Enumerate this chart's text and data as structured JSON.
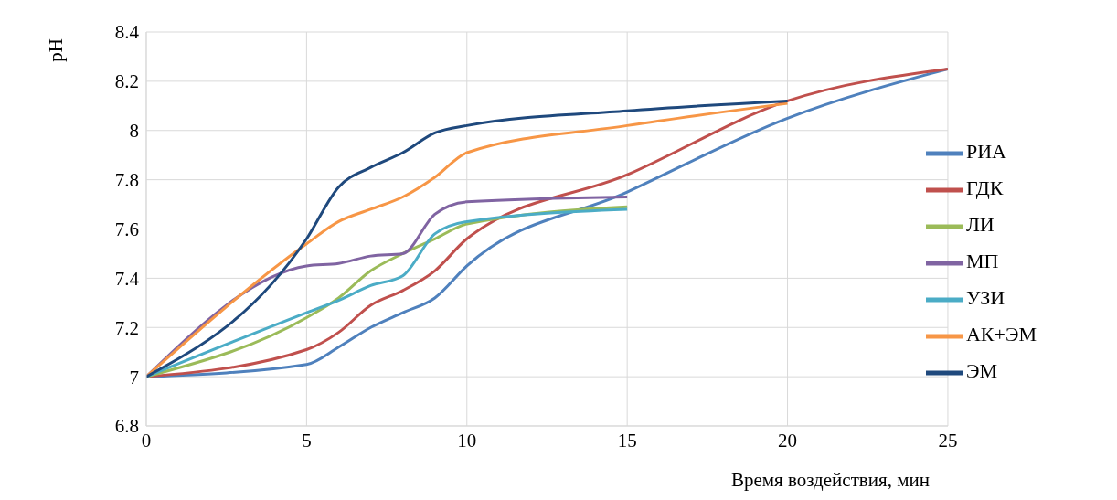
{
  "chart_data": {
    "type": "line",
    "xlabel": "Время воздействия,  мин",
    "ylabel": "pH",
    "x": [
      0,
      5,
      6,
      7,
      8,
      9,
      10,
      15,
      20,
      25
    ],
    "series": [
      {
        "name": "РИА",
        "color": "#4f81bd",
        "values": [
          7,
          7.05,
          7.12,
          7.2,
          7.26,
          7.32,
          7.45,
          7.75,
          8.05,
          8.25
        ]
      },
      {
        "name": "ГДК",
        "color": "#c0504d",
        "values": [
          7,
          7.11,
          7.18,
          7.29,
          7.35,
          7.43,
          7.56,
          7.82,
          8.12,
          8.25
        ]
      },
      {
        "name": "ЛИ",
        "color": "#9bbb59",
        "values": [
          7,
          7.24,
          7.32,
          7.43,
          7.5,
          7.56,
          7.62,
          7.69,
          null,
          null
        ]
      },
      {
        "name": "МП",
        "color": "#8064a2",
        "values": [
          7,
          7.45,
          7.46,
          7.49,
          7.5,
          7.66,
          7.71,
          7.73,
          null,
          null
        ]
      },
      {
        "name": "УЗИ",
        "color": "#4bacc6",
        "values": [
          7,
          7.26,
          7.31,
          7.37,
          7.41,
          7.58,
          7.63,
          7.68,
          null,
          null
        ]
      },
      {
        "name": "АК+ЭМ",
        "color": "#f79646",
        "values": [
          7,
          7.54,
          7.63,
          7.68,
          7.73,
          7.81,
          7.91,
          8.02,
          8.11,
          null
        ]
      },
      {
        "name": "ЭМ",
        "color": "#1f497d",
        "values": [
          7,
          7.56,
          7.77,
          7.85,
          7.91,
          7.99,
          8.02,
          8.08,
          8.12,
          null
        ]
      }
    ],
    "xlim": [
      0,
      25
    ],
    "xticks": [
      0,
      5,
      10,
      15,
      20,
      25
    ],
    "ylim": [
      6.8,
      8.4
    ],
    "yticks": [
      6.8,
      7,
      7.2,
      7.4,
      7.6,
      7.8,
      8,
      8.2,
      8.4
    ],
    "grid": true,
    "legend": "right",
    "marker": "none",
    "line_style": "solid"
  }
}
